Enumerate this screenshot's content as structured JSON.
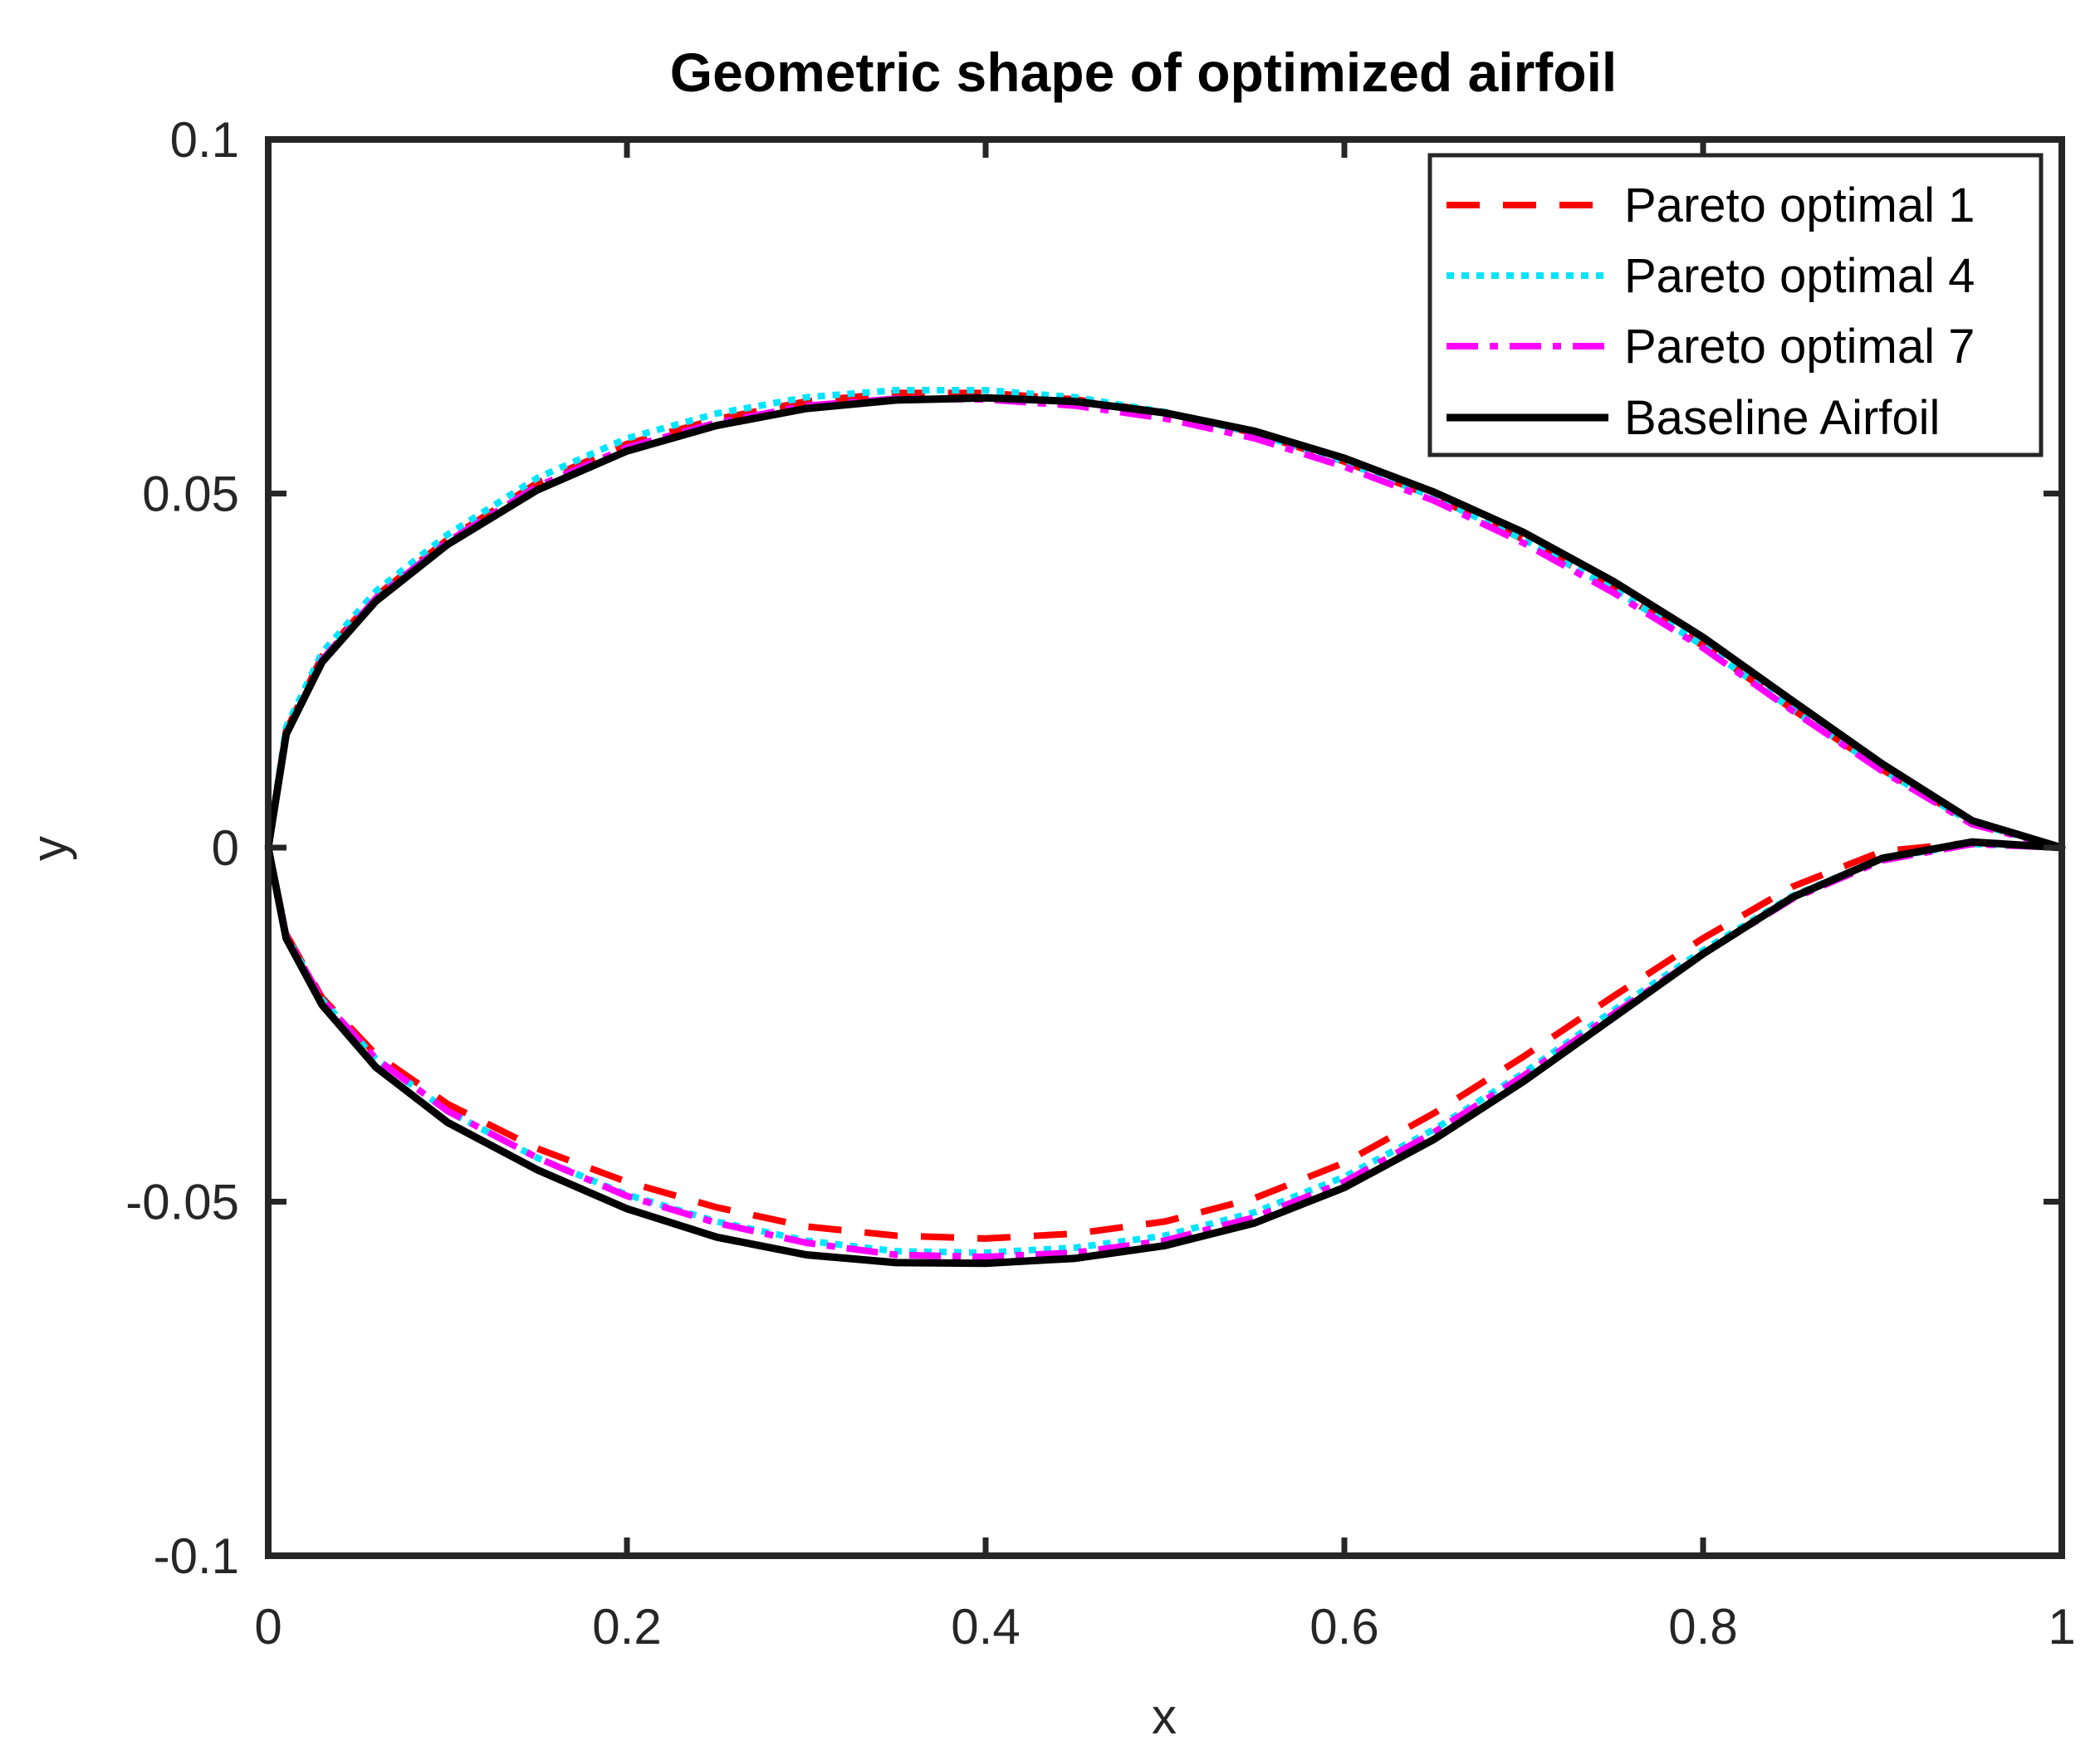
{
  "chart_data": {
    "type": "line",
    "title": "Geometric shape of optimized airfoil",
    "xlabel": "x",
    "ylabel": "y",
    "xlim": [
      0,
      1
    ],
    "ylim": [
      -0.1,
      0.1
    ],
    "xticks": [
      0,
      0.2,
      0.4,
      0.6,
      0.8,
      1
    ],
    "xtick_labels": [
      "0",
      "0.2",
      "0.4",
      "0.6",
      "0.8",
      "1"
    ],
    "yticks": [
      -0.1,
      -0.05,
      0,
      0.05,
      0.1
    ],
    "ytick_labels": [
      "-0.1",
      "-0.05",
      "0",
      "0.05",
      "0.1"
    ],
    "grid": false,
    "legend_position": "top-right",
    "series": [
      {
        "name": "Pareto optimal 1",
        "color": "#ff0000",
        "style": "dashed",
        "x": [
          0,
          0.01,
          0.03,
          0.06,
          0.1,
          0.15,
          0.2,
          0.25,
          0.3,
          0.35,
          0.4,
          0.45,
          0.5,
          0.55,
          0.6,
          0.65,
          0.7,
          0.75,
          0.8,
          0.85,
          0.9,
          0.95,
          1.0,
          0.95,
          0.9,
          0.85,
          0.8,
          0.75,
          0.7,
          0.65,
          0.6,
          0.55,
          0.5,
          0.45,
          0.4,
          0.35,
          0.3,
          0.25,
          0.2,
          0.15,
          0.1,
          0.06,
          0.03,
          0.01,
          0
        ],
        "y": [
          0,
          0.0165,
          0.027,
          0.0355,
          0.0435,
          0.0515,
          0.057,
          0.0605,
          0.063,
          0.0642,
          0.0642,
          0.0633,
          0.0614,
          0.0585,
          0.0545,
          0.0495,
          0.0435,
          0.0365,
          0.0285,
          0.0195,
          0.011,
          0.0035,
          0,
          0.0007,
          -0.0005,
          -0.0055,
          -0.0128,
          -0.021,
          -0.0295,
          -0.0375,
          -0.0445,
          -0.0495,
          -0.0528,
          -0.0545,
          -0.0552,
          -0.0548,
          -0.0535,
          -0.0508,
          -0.0472,
          -0.0425,
          -0.0362,
          -0.0292,
          -0.0212,
          -0.0122,
          0
        ]
      },
      {
        "name": "Pareto optimal 4",
        "color": "#00e5ff",
        "style": "dotted",
        "x": [
          0,
          0.01,
          0.03,
          0.06,
          0.1,
          0.15,
          0.2,
          0.25,
          0.3,
          0.35,
          0.4,
          0.45,
          0.5,
          0.55,
          0.6,
          0.65,
          0.7,
          0.75,
          0.8,
          0.85,
          0.9,
          0.95,
          1.0,
          0.95,
          0.9,
          0.85,
          0.8,
          0.75,
          0.7,
          0.65,
          0.6,
          0.55,
          0.5,
          0.45,
          0.4,
          0.35,
          0.3,
          0.25,
          0.2,
          0.15,
          0.1,
          0.06,
          0.03,
          0.01,
          0
        ],
        "y": [
          0,
          0.017,
          0.0275,
          0.0362,
          0.0442,
          0.0522,
          0.0578,
          0.0613,
          0.0636,
          0.0646,
          0.0646,
          0.0636,
          0.0615,
          0.0585,
          0.0545,
          0.0495,
          0.0435,
          0.0365,
          0.0285,
          0.0195,
          0.011,
          0.0035,
          0,
          0.0005,
          -0.0015,
          -0.0068,
          -0.0145,
          -0.023,
          -0.0318,
          -0.0398,
          -0.0465,
          -0.0515,
          -0.0548,
          -0.0565,
          -0.0572,
          -0.057,
          -0.0555,
          -0.0528,
          -0.049,
          -0.0438,
          -0.0372,
          -0.0298,
          -0.0215,
          -0.0124,
          0
        ]
      },
      {
        "name": "Pareto optimal 7",
        "color": "#ff00ff",
        "style": "dashdot",
        "x": [
          0,
          0.01,
          0.03,
          0.06,
          0.1,
          0.15,
          0.2,
          0.25,
          0.3,
          0.35,
          0.4,
          0.45,
          0.5,
          0.55,
          0.6,
          0.65,
          0.7,
          0.75,
          0.8,
          0.85,
          0.9,
          0.95,
          1.0,
          0.95,
          0.9,
          0.85,
          0.8,
          0.75,
          0.7,
          0.65,
          0.6,
          0.55,
          0.5,
          0.45,
          0.4,
          0.35,
          0.3,
          0.25,
          0.2,
          0.15,
          0.1,
          0.06,
          0.03,
          0.01,
          0
        ],
        "y": [
          0,
          0.016,
          0.0265,
          0.0352,
          0.0432,
          0.051,
          0.0565,
          0.06,
          0.0624,
          0.0634,
          0.0633,
          0.0624,
          0.0606,
          0.0578,
          0.0538,
          0.049,
          0.043,
          0.036,
          0.0282,
          0.0193,
          0.0108,
          0.0033,
          0,
          0.0005,
          -0.0018,
          -0.0072,
          -0.015,
          -0.0235,
          -0.0322,
          -0.0402,
          -0.0472,
          -0.0522,
          -0.0555,
          -0.0572,
          -0.0578,
          -0.0575,
          -0.0558,
          -0.053,
          -0.0492,
          -0.0438,
          -0.0372,
          -0.0298,
          -0.0215,
          -0.0124,
          0
        ]
      },
      {
        "name": "Baseline Airfoil",
        "color": "#000000",
        "style": "solid",
        "x": [
          0,
          0.01,
          0.03,
          0.06,
          0.1,
          0.15,
          0.2,
          0.25,
          0.3,
          0.35,
          0.4,
          0.45,
          0.5,
          0.55,
          0.6,
          0.65,
          0.7,
          0.75,
          0.8,
          0.85,
          0.9,
          0.95,
          1.0,
          0.95,
          0.9,
          0.85,
          0.8,
          0.75,
          0.7,
          0.65,
          0.6,
          0.55,
          0.5,
          0.45,
          0.4,
          0.35,
          0.3,
          0.25,
          0.2,
          0.15,
          0.1,
          0.06,
          0.03,
          0.01,
          0
        ],
        "y": [
          0,
          0.016,
          0.0262,
          0.0348,
          0.0428,
          0.0505,
          0.056,
          0.0596,
          0.062,
          0.0632,
          0.0635,
          0.063,
          0.0614,
          0.0588,
          0.055,
          0.0502,
          0.0445,
          0.0376,
          0.0297,
          0.0207,
          0.0118,
          0.0038,
          0,
          0.0008,
          -0.0015,
          -0.007,
          -0.015,
          -0.024,
          -0.033,
          -0.0412,
          -0.048,
          -0.053,
          -0.0562,
          -0.058,
          -0.0587,
          -0.0586,
          -0.0575,
          -0.055,
          -0.051,
          -0.0455,
          -0.0388,
          -0.031,
          -0.0222,
          -0.0128,
          0
        ]
      }
    ]
  }
}
